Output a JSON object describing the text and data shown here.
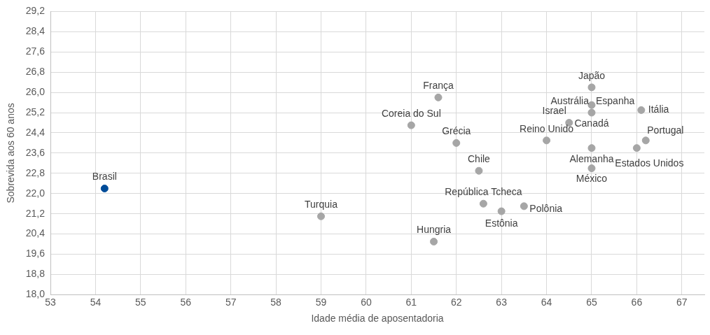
{
  "chart_data": {
    "type": "scatter",
    "xlabel": "Idade média de aposentadoria",
    "ylabel": "Sobrevida aos 60 anos",
    "x": [
      54.2,
      59,
      61.6,
      61,
      62,
      62.5,
      62.6,
      63,
      63.5,
      61.5,
      64,
      64.5,
      65,
      65,
      65,
      65,
      65,
      66.1,
      66.2,
      66
    ],
    "series": [
      {
        "values": [
          22.2,
          21.1,
          25.8,
          24.7,
          24.0,
          22.9,
          21.6,
          21.3,
          21.5,
          20.1,
          24.1,
          24.8,
          26.2,
          25.5,
          25.2,
          23.8,
          23.0,
          25.3,
          24.1,
          23.8
        ],
        "colors": [
          "#004c99",
          "#a6a6a6",
          "#a6a6a6",
          "#a6a6a6",
          "#a6a6a6",
          "#a6a6a6",
          "#a6a6a6",
          "#a6a6a6",
          "#a6a6a6",
          "#a6a6a6",
          "#a6a6a6",
          "#a6a6a6",
          "#a6a6a6",
          "#a6a6a6",
          "#a6a6a6",
          "#a6a6a6",
          "#a6a6a6",
          "#a6a6a6",
          "#a6a6a6",
          "#a6a6a6"
        ]
      }
    ],
    "annotations": [
      {
        "text": "Brasil",
        "x": 54.2,
        "y": 22.2
      },
      {
        "text": "Turquia",
        "x": 59,
        "y": 21.1
      },
      {
        "text": "França",
        "x": 61.6,
        "y": 25.8
      },
      {
        "text": "Coreia do Sul",
        "x": 61,
        "y": 24.7
      },
      {
        "text": "Grécia",
        "x": 62,
        "y": 24.0
      },
      {
        "text": "Chile",
        "x": 62.5,
        "y": 22.9
      },
      {
        "text": "República Tcheca",
        "x": 62.6,
        "y": 21.6
      },
      {
        "text": "Estônia",
        "x": 63,
        "y": 21.3
      },
      {
        "text": "Polônia",
        "x": 63.5,
        "y": 21.5
      },
      {
        "text": "Hungria",
        "x": 61.5,
        "y": 20.1
      },
      {
        "text": "Reino Unido",
        "x": 64,
        "y": 24.1
      },
      {
        "text": "Israel",
        "x": 64.5,
        "y": 24.8
      },
      {
        "text": "Japão",
        "x": 65,
        "y": 26.2
      },
      {
        "text": "Austrália",
        "x": 65,
        "y": 25.5
      },
      {
        "text": "Espanha",
        "x": 65,
        "y": 25.5
      },
      {
        "text": "Canadá",
        "x": 65,
        "y": 25.2
      },
      {
        "text": "Alemanha",
        "x": 65,
        "y": 23.8
      },
      {
        "text": "México",
        "x": 65,
        "y": 23.0
      },
      {
        "text": "Itália",
        "x": 66.1,
        "y": 25.3
      },
      {
        "text": "Portugal",
        "x": 66.2,
        "y": 24.1
      },
      {
        "text": "Estados Unidos",
        "x": 66,
        "y": 23.8
      }
    ],
    "xlim": [
      53,
      67.5
    ],
    "xticks": [
      53,
      54,
      55,
      56,
      57,
      58,
      59,
      60,
      61,
      62,
      63,
      64,
      65,
      66,
      67
    ],
    "ylim": [
      18,
      29.2
    ],
    "yticks": [
      {
        "value": 18,
        "label": "18,0"
      },
      {
        "value": 18.8,
        "label": "18,8"
      },
      {
        "value": 19.6,
        "label": "19,6"
      },
      {
        "value": 20.4,
        "label": "20,4"
      },
      {
        "value": 21.2,
        "label": "21,2"
      },
      {
        "value": 22,
        "label": "22,0"
      },
      {
        "value": 22.8,
        "label": "22,8"
      },
      {
        "value": 23.6,
        "label": "23,6"
      },
      {
        "value": 24.4,
        "label": "24,4"
      },
      {
        "value": 25.2,
        "label": "25,2"
      },
      {
        "value": 26,
        "label": "26,0"
      },
      {
        "value": 26.8,
        "label": "26,8"
      },
      {
        "value": 27.6,
        "label": "27,6"
      },
      {
        "value": 28.4,
        "label": "28,4"
      },
      {
        "value": 29.2,
        "label": "29,2"
      }
    ],
    "grid": true,
    "legend": false,
    "marker": "circle"
  }
}
